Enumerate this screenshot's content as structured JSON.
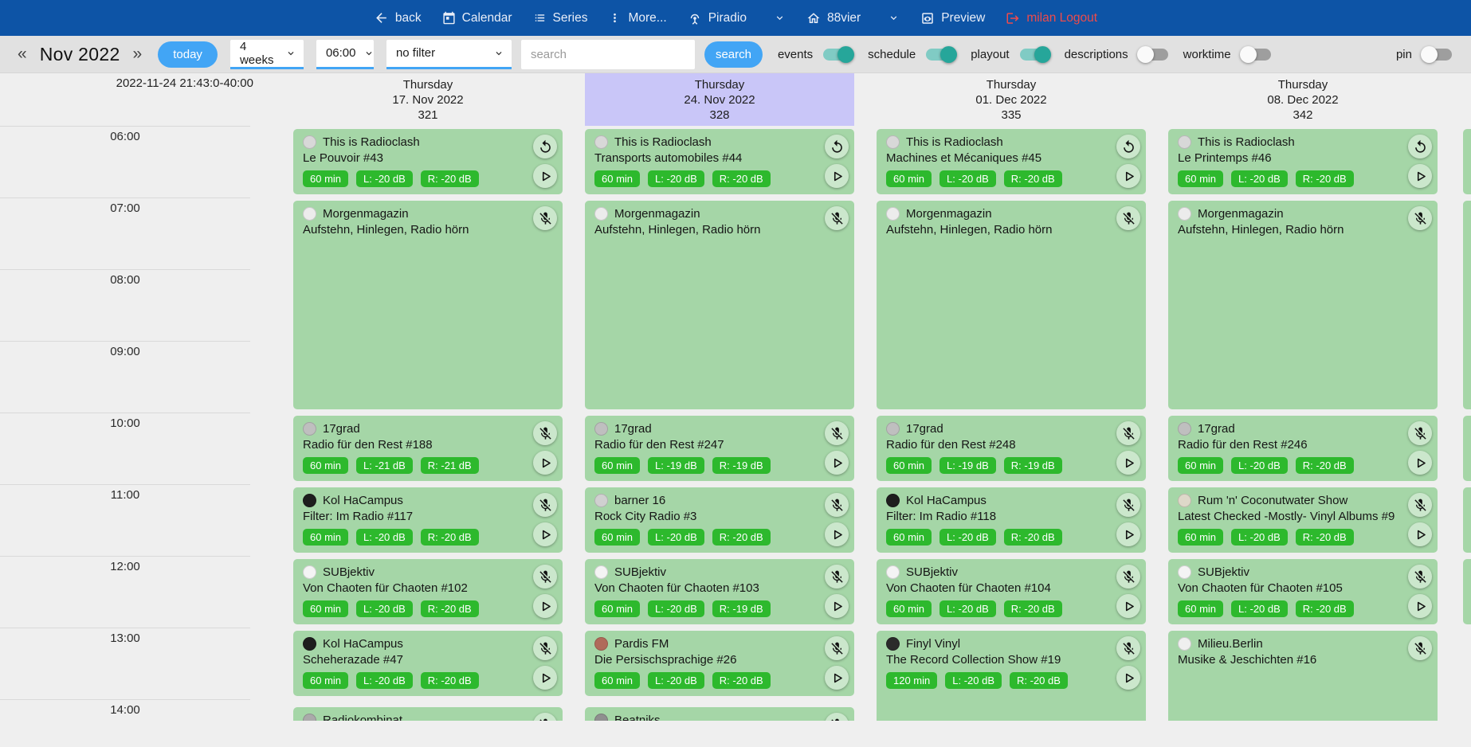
{
  "colors": {
    "navbar": "#0d54a6",
    "accent_blue": "#42a5f5",
    "logout_red": "#ee4b4b",
    "event_card_green": "#a5d6a7",
    "badge_green": "#2db92d",
    "selected_day_highlight": "#c9c6f8",
    "toggle_on_teal": "#26a69a"
  },
  "navbar": {
    "back_label": "back",
    "calendar_label": "Calendar",
    "series_label": "Series",
    "more_label": "More...",
    "station_label": "Piradio",
    "channel_label": "88vier",
    "preview_label": "Preview",
    "logout_label": "milan Logout"
  },
  "toolbar": {
    "prev": "«",
    "month_label": "Nov 2022",
    "next": "»",
    "today_label": "today",
    "range_value": "4 weeks",
    "start_time_value": "06:00",
    "filter_value": "no filter",
    "search_placeholder": "search",
    "search_label": "search",
    "toggles": [
      {
        "label": "events",
        "on": true
      },
      {
        "label": "schedule",
        "on": true
      },
      {
        "label": "playout",
        "on": true
      },
      {
        "label": "descriptions",
        "on": false
      },
      {
        "label": "worktime",
        "on": false
      }
    ],
    "pin_toggle": {
      "label": "pin",
      "on": false
    }
  },
  "timeline": {
    "now_label": "2022-11-24 21:43:0-40:00",
    "hours": [
      "06:00",
      "07:00",
      "08:00",
      "09:00",
      "10:00",
      "11:00",
      "12:00",
      "13:00",
      "14:00"
    ]
  },
  "calendar": {
    "columns": [
      {
        "weekday": "Thursday",
        "date": "17. Nov 2022",
        "day_number": "321",
        "highlighted": false,
        "events": [
          {
            "show": "This is Radioclash",
            "episode": "Le Pouvoir #43",
            "badges": [
              "60 min",
              "L: -20 dB",
              "R: -20 dB"
            ],
            "icons": [
              "replay",
              "play"
            ],
            "start": "06:00",
            "duration_min": 60,
            "avatar_color": "#d8d8d8"
          },
          {
            "show": "Morgenmagazin",
            "episode": "Aufstehn, Hinlegen, Radio hörn",
            "badges": [],
            "icons": [
              "mic-off"
            ],
            "start": "07:00",
            "duration_min": 180,
            "avatar_color": "#ececec"
          },
          {
            "show": "17grad",
            "episode": "Radio für den Rest #188",
            "badges": [
              "60 min",
              "L: -21 dB",
              "R: -21 dB"
            ],
            "icons": [
              "mic-off",
              "play"
            ],
            "start": "10:00",
            "duration_min": 60,
            "avatar_color": "#bfbfbf"
          },
          {
            "show": "Kol HaCampus",
            "episode": "Filter: Im Radio #117",
            "badges": [
              "60 min",
              "L: -20 dB",
              "R: -20 dB"
            ],
            "icons": [
              "mic-off",
              "play"
            ],
            "start": "11:00",
            "duration_min": 60,
            "avatar_color": "#1e1e1e"
          },
          {
            "show": "SUBjektiv",
            "episode": "Von Chaoten für Chaoten #102",
            "badges": [
              "60 min",
              "L: -20 dB",
              "R: -20 dB"
            ],
            "icons": [
              "mic-off",
              "play"
            ],
            "start": "12:00",
            "duration_min": 60,
            "avatar_color": "#f4f4f4"
          },
          {
            "show": "Kol HaCampus",
            "episode": "Scheherazade #47",
            "badges": [
              "60 min",
              "L: -20 dB",
              "R: -20 dB"
            ],
            "icons": [
              "mic-off",
              "play"
            ],
            "start": "13:00",
            "duration_min": 60,
            "avatar_color": "#1e1e1e"
          },
          {
            "show": "Radiokombinat",
            "episode": "",
            "badges": [],
            "icons": [
              "mic-off"
            ],
            "start": "14:04",
            "duration_min": 60,
            "avatar_color": "#aaaaaa"
          }
        ]
      },
      {
        "weekday": "Thursday",
        "date": "24. Nov 2022",
        "day_number": "328",
        "highlighted": true,
        "events": [
          {
            "show": "This is Radioclash",
            "episode": "Transports automobiles #44",
            "badges": [
              "60 min",
              "L: -20 dB",
              "R: -20 dB"
            ],
            "icons": [
              "replay",
              "play"
            ],
            "start": "06:00",
            "duration_min": 60,
            "avatar_color": "#d8d8d8"
          },
          {
            "show": "Morgenmagazin",
            "episode": "Aufstehn, Hinlegen, Radio hörn",
            "badges": [],
            "icons": [
              "mic-off"
            ],
            "start": "07:00",
            "duration_min": 180,
            "avatar_color": "#ececec"
          },
          {
            "show": "17grad",
            "episode": "Radio für den Rest #247",
            "badges": [
              "60 min",
              "L: -19 dB",
              "R: -19 dB"
            ],
            "icons": [
              "mic-off",
              "play"
            ],
            "start": "10:00",
            "duration_min": 60,
            "avatar_color": "#bfbfbf"
          },
          {
            "show": "barner 16",
            "episode": "Rock City Radio #3",
            "badges": [
              "60 min",
              "L: -20 dB",
              "R: -20 dB"
            ],
            "icons": [
              "mic-off",
              "play"
            ],
            "start": "11:00",
            "duration_min": 60,
            "avatar_color": "#d0d0d0"
          },
          {
            "show": "SUBjektiv",
            "episode": "Von Chaoten für Chaoten #103",
            "badges": [
              "60 min",
              "L: -20 dB",
              "R: -19 dB"
            ],
            "icons": [
              "mic-off",
              "play"
            ],
            "start": "12:00",
            "duration_min": 60,
            "avatar_color": "#f4f4f4"
          },
          {
            "show": "Pardis FM",
            "episode": "Die Persischsprachige #26",
            "badges": [
              "60 min",
              "L: -20 dB",
              "R: -20 dB"
            ],
            "icons": [
              "mic-off",
              "play"
            ],
            "start": "13:00",
            "duration_min": 60,
            "avatar_color": "#b06a5a"
          },
          {
            "show": "Beatniks",
            "episode": "",
            "badges": [],
            "icons": [
              "mic-off"
            ],
            "start": "14:04",
            "duration_min": 60,
            "avatar_color": "#8f8f8f"
          }
        ]
      },
      {
        "weekday": "Thursday",
        "date": "01. Dec 2022",
        "day_number": "335",
        "highlighted": false,
        "events": [
          {
            "show": "This is Radioclash",
            "episode": "Machines et Mécaniques #45",
            "badges": [
              "60 min",
              "L: -20 dB",
              "R: -20 dB"
            ],
            "icons": [
              "replay",
              "play"
            ],
            "start": "06:00",
            "duration_min": 60,
            "avatar_color": "#d8d8d8"
          },
          {
            "show": "Morgenmagazin",
            "episode": "Aufstehn, Hinlegen, Radio hörn",
            "badges": [],
            "icons": [
              "mic-off"
            ],
            "start": "07:00",
            "duration_min": 180,
            "avatar_color": "#ececec"
          },
          {
            "show": "17grad",
            "episode": "Radio für den Rest #248",
            "badges": [
              "60 min",
              "L: -19 dB",
              "R: -19 dB"
            ],
            "icons": [
              "mic-off",
              "play"
            ],
            "start": "10:00",
            "duration_min": 60,
            "avatar_color": "#bfbfbf"
          },
          {
            "show": "Kol HaCampus",
            "episode": "Filter: Im Radio #118",
            "badges": [
              "60 min",
              "L: -20 dB",
              "R: -20 dB"
            ],
            "icons": [
              "mic-off",
              "play"
            ],
            "start": "11:00",
            "duration_min": 60,
            "avatar_color": "#1e1e1e"
          },
          {
            "show": "SUBjektiv",
            "episode": "Von Chaoten für Chaoten #104",
            "badges": [
              "60 min",
              "L: -20 dB",
              "R: -20 dB"
            ],
            "icons": [
              "mic-off",
              "play"
            ],
            "start": "12:00",
            "duration_min": 60,
            "avatar_color": "#f4f4f4"
          },
          {
            "show": "Finyl Vinyl",
            "episode": "The Record Collection Show #19",
            "badges": [
              "120 min",
              "L: -20 dB",
              "R: -20 dB"
            ],
            "icons": [
              "mic-off",
              "play"
            ],
            "start": "13:00",
            "duration_min": 120,
            "avatar_color": "#2b2b2b"
          }
        ]
      },
      {
        "weekday": "Thursday",
        "date": "08. Dec 2022",
        "day_number": "342",
        "highlighted": false,
        "events": [
          {
            "show": "This is Radioclash",
            "episode": "Le Printemps #46",
            "badges": [
              "60 min",
              "L: -20 dB",
              "R: -20 dB"
            ],
            "icons": [
              "replay",
              "play"
            ],
            "start": "06:00",
            "duration_min": 60,
            "avatar_color": "#d8d8d8"
          },
          {
            "show": "Morgenmagazin",
            "episode": "Aufstehn, Hinlegen, Radio hörn",
            "badges": [],
            "icons": [
              "mic-off"
            ],
            "start": "07:00",
            "duration_min": 180,
            "avatar_color": "#ececec"
          },
          {
            "show": "17grad",
            "episode": "Radio für den Rest #246",
            "badges": [
              "60 min",
              "L: -20 dB",
              "R: -20 dB"
            ],
            "icons": [
              "mic-off",
              "play"
            ],
            "start": "10:00",
            "duration_min": 60,
            "avatar_color": "#bfbfbf"
          },
          {
            "show": "Rum 'n' Coconutwater Show",
            "episode": "Latest Checked -Mostly- Vinyl Albums #9",
            "badges": [
              "60 min",
              "L: -20 dB",
              "R: -20 dB"
            ],
            "icons": [
              "mic-off",
              "play"
            ],
            "start": "11:00",
            "duration_min": 60,
            "avatar_color": "#ded8c9"
          },
          {
            "show": "SUBjektiv",
            "episode": "Von Chaoten für Chaoten #105",
            "badges": [
              "60 min",
              "L: -20 dB",
              "R: -20 dB"
            ],
            "icons": [
              "mic-off",
              "play"
            ],
            "start": "12:00",
            "duration_min": 60,
            "avatar_color": "#f4f4f4"
          },
          {
            "show": "Milieu.Berlin",
            "episode": "Musike & Jeschichten #16",
            "badges": [],
            "icons": [
              "mic-off"
            ],
            "start": "13:00",
            "duration_min": 120,
            "avatar_color": "#efefef"
          }
        ]
      }
    ],
    "next_week_sliver": [
      {
        "start": "06:00",
        "dur": 60
      },
      {
        "start": "07:00",
        "dur": 180
      },
      {
        "start": "10:00",
        "dur": 60
      },
      {
        "start": "11:00",
        "dur": 60
      },
      {
        "start": "12:00",
        "dur": 60
      }
    ]
  }
}
